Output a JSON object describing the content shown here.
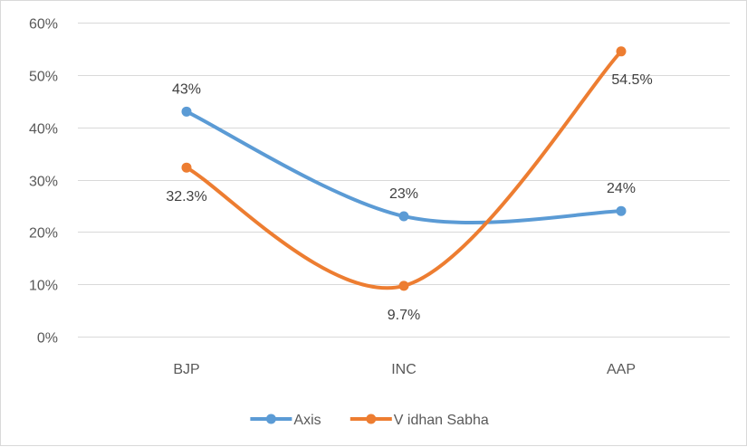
{
  "chart_data": {
    "type": "line",
    "categories": [
      "BJP",
      "INC",
      "AAP"
    ],
    "series": [
      {
        "name": "Axis",
        "values": [
          43,
          23,
          24
        ],
        "labels": [
          "43%",
          "23%",
          "24%"
        ],
        "color": "#5b9bd5"
      },
      {
        "name": "V idhan Sabha",
        "values": [
          32.3,
          9.7,
          54.5
        ],
        "labels": [
          "32.3%",
          "9.7%",
          "54.5%"
        ],
        "color": "#ed7d31"
      }
    ],
    "ylim": [
      0,
      60
    ],
    "yticks": [
      0,
      10,
      20,
      30,
      40,
      50,
      60
    ],
    "ytick_labels": [
      "0%",
      "10%",
      "20%",
      "30%",
      "40%",
      "50%",
      "60%"
    ],
    "title": "",
    "xlabel": "",
    "ylabel": "",
    "grid": true,
    "legend": "bottom",
    "smooth": true
  }
}
